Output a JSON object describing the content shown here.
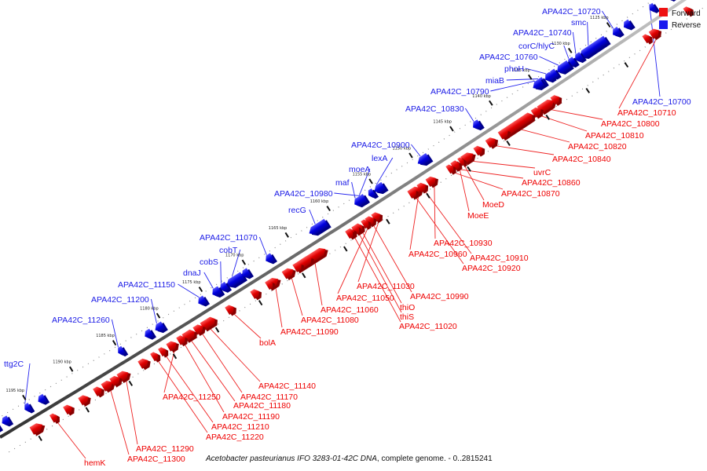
{
  "legend": {
    "forward_label": "Forward",
    "reverse_label": "Reverse",
    "forward_color": "#ee1111",
    "reverse_color": "#1a1aee"
  },
  "footer": {
    "organism": "Acetobacter pasteurianus IFO 3283-01-42C DNA",
    "range": ", complete genome. - 0..2815241"
  },
  "ticks": [
    "1125 kbp",
    "1130 kbp",
    "1135 kbp",
    "1140 kbp",
    "1145 kbp",
    "1150 kbp",
    "1155 kbp",
    "1160 kbp",
    "1165 kbp",
    "1170 kbp",
    "1175 kbp",
    "1180 kbp",
    "1185 kbp",
    "1190 kbp",
    "1195 kbp"
  ],
  "reverse_genes": [
    "APA42C_10720",
    "smc",
    "APA42C_10740",
    "corC/hlyC",
    "APA42C_10760",
    "phoH",
    "miaB",
    "APA42C_10790",
    "APA42C_10830",
    "APA42C_10900",
    "lexA",
    "moeA",
    "maf",
    "APA42C_10980",
    "recG",
    "APA42C_11070",
    "cobT",
    "cobS",
    "dnaJ",
    "APA42C_11150",
    "APA42C_11200",
    "APA42C_11260",
    "ttg2C",
    "APA42C_10700"
  ],
  "forward_genes": [
    "APA42C_10710",
    "APA42C_10800",
    "APA42C_10810",
    "APA42C_10820",
    "APA42C_10840",
    "uvrC",
    "APA42C_10860",
    "APA42C_10870",
    "MoeD",
    "MoeE",
    "APA42C_10930",
    "APA42C_10960",
    "APA42C_10910",
    "APA42C_10920",
    "APA42C_11030",
    "APA42C_10990",
    "APA42C_11050",
    "thiO",
    "thiS",
    "APA42C_11020",
    "APA42C_11060",
    "APA42C_11080",
    "APA42C_11090",
    "bolA",
    "APA42C_11140",
    "APA42C_11170",
    "APA42C_11250",
    "APA42C_11180",
    "APA42C_11190",
    "APA42C_11210",
    "APA42C_11220",
    "APA42C_11290",
    "APA42C_11300",
    "hemK"
  ]
}
